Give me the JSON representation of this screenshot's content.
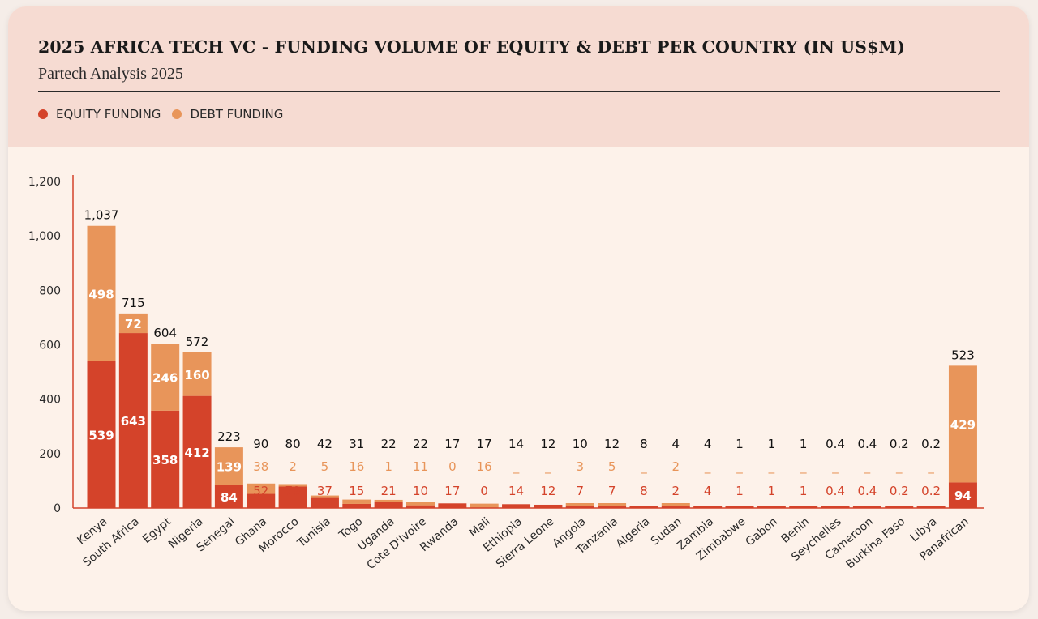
{
  "header": {
    "title": "2025 AFRICA TECH VC - FUNDING VOLUME OF EQUITY & DEBT PER COUNTRY (IN US$M)",
    "subtitle": "Partech Analysis 2025"
  },
  "legend": [
    {
      "label": "EQUITY FUNDING",
      "color": "#d4432a"
    },
    {
      "label": "DEBT FUNDING",
      "color": "#e8955a"
    }
  ],
  "colors": {
    "equity": "#d4432a",
    "debt": "#e8955a",
    "axis": "#d4432a",
    "total_label": "#111111",
    "inner_label": "#ffffff"
  },
  "chart_data": {
    "type": "bar",
    "stacked": true,
    "title": "2025 AFRICA TECH VC - FUNDING VOLUME OF EQUITY & DEBT PER COUNTRY (IN US$M)",
    "ylim": [
      0,
      1200
    ],
    "yticks": [
      "0",
      "200",
      "400",
      "600",
      "800",
      "1,000",
      "1,200"
    ],
    "grid": false,
    "legend_position": "top-left",
    "categories": [
      "Kenya",
      "South Africa",
      "Egypt",
      "Nigeria",
      "Senegal",
      "Ghana",
      "Morocco",
      "Tunisia",
      "Togo",
      "Uganda",
      "Cote D'Ivoire",
      "Rwanda",
      "Mali",
      "Ethiopia",
      "Sierra Leone",
      "Angola",
      "Tanzania",
      "Algeria",
      "Sudan",
      "Zambia",
      "Zimbabwe",
      "Gabon",
      "Benin",
      "Seychelles",
      "Cameroon",
      "Burkina Faso",
      "Libya",
      "Panafrican"
    ],
    "series": [
      {
        "name": "EQUITY FUNDING",
        "values": [
          539,
          643,
          358,
          412,
          84,
          52,
          79,
          37,
          15,
          21,
          10,
          17,
          0,
          14,
          12,
          7,
          7,
          8,
          2,
          4,
          1,
          1,
          1,
          0.4,
          0.4,
          0.2,
          0.2,
          94
        ]
      },
      {
        "name": "DEBT FUNDING",
        "values": [
          498,
          72,
          246,
          160,
          139,
          38,
          2,
          5,
          16,
          1,
          11,
          0,
          16,
          0,
          0,
          3,
          5,
          0,
          2,
          0,
          0,
          0,
          0,
          0,
          0,
          0,
          0,
          429
        ]
      }
    ],
    "total_labels": [
      "1,037",
      "715",
      "604",
      "572",
      "223",
      "90",
      "80",
      "42",
      "31",
      "22",
      "22",
      "17",
      "17",
      "14",
      "12",
      "10",
      "12",
      "8",
      "4",
      "4",
      "1",
      "1",
      "1",
      "0.4",
      "0.4",
      "0.2",
      "0.2",
      "523"
    ],
    "equity_labels": [
      "539",
      "643",
      "358",
      "412",
      "84",
      "52",
      "79",
      "37",
      "15",
      "21",
      "10",
      "17",
      "0",
      "14",
      "12",
      "7",
      "7",
      "8",
      "2",
      "4",
      "1",
      "1",
      "1",
      "0.4",
      "0.4",
      "0.2",
      "0.2",
      "94"
    ],
    "debt_labels": [
      "498",
      "72",
      "246",
      "160",
      "139",
      "38",
      "2",
      "5",
      "16",
      "1",
      "11",
      "0",
      "16",
      "_",
      "_",
      "3",
      "5",
      "_",
      "2",
      "_",
      "_",
      "_",
      "_",
      "_",
      "_",
      "_",
      "_",
      "429"
    ]
  }
}
